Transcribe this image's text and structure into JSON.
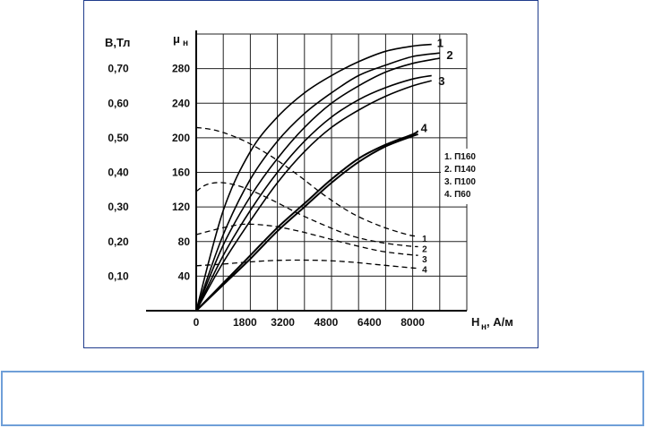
{
  "chart_data": {
    "type": "line",
    "y_left_label": "В,Тл",
    "y_right_label": "μ",
    "y_right_label_sub": "н",
    "x_label": "H",
    "x_label_sub": "н",
    "x_label_unit": ", А/м",
    "x_ticks": [
      "0",
      "1800",
      "3200",
      "4800",
      "6400",
      "8000"
    ],
    "x_tick_values": [
      0,
      1800,
      3200,
      4800,
      6400,
      8000
    ],
    "b_ticks": [
      "0,10",
      "0,20",
      "0,30",
      "0,40",
      "0,50",
      "0,60",
      "0,70"
    ],
    "b_tick_values": [
      0.1,
      0.2,
      0.3,
      0.4,
      0.5,
      0.6,
      0.7
    ],
    "mu_ticks": [
      "40",
      "80",
      "120",
      "160",
      "200",
      "240",
      "280"
    ],
    "mu_tick_values": [
      40,
      80,
      120,
      160,
      200,
      240,
      280
    ],
    "xlim": [
      0,
      10000
    ],
    "b_ylim": [
      0,
      0.8
    ],
    "mu_ylim": [
      0,
      320
    ],
    "grid": true,
    "legend": [
      "1. П160",
      "2. П140",
      "3. П100",
      "4. П60"
    ],
    "legend_position": "right",
    "b_series": [
      {
        "name": "1",
        "x": [
          0,
          1000,
          2000,
          3000,
          4000,
          5000,
          6000,
          7000,
          8000,
          8700
        ],
        "y": [
          0,
          0.29,
          0.46,
          0.56,
          0.63,
          0.68,
          0.72,
          0.75,
          0.765,
          0.77
        ]
      },
      {
        "name": "1",
        "x": [
          0,
          1000,
          2000,
          3000,
          4000,
          5000,
          6000,
          7000,
          8000,
          9000
        ],
        "y": [
          0,
          0.22,
          0.38,
          0.49,
          0.57,
          0.63,
          0.68,
          0.71,
          0.735,
          0.745
        ]
      },
      {
        "name": "2",
        "x": [
          0,
          1000,
          2000,
          3000,
          4000,
          5000,
          6000,
          7000,
          8000,
          9000
        ],
        "y": [
          0,
          0.19,
          0.33,
          0.44,
          0.53,
          0.6,
          0.65,
          0.69,
          0.715,
          0.73
        ]
      },
      {
        "name": "2",
        "x": [
          0,
          1000,
          2000,
          3000,
          4000,
          5000,
          6000,
          7000,
          8000,
          8700
        ],
        "y": [
          0,
          0.16,
          0.29,
          0.4,
          0.49,
          0.56,
          0.61,
          0.645,
          0.67,
          0.68
        ]
      },
      {
        "name": "3",
        "x": [
          0,
          1000,
          2000,
          3000,
          4000,
          5000,
          6000,
          7000,
          8000,
          8700
        ],
        "y": [
          0,
          0.14,
          0.26,
          0.37,
          0.46,
          0.53,
          0.58,
          0.62,
          0.65,
          0.665
        ]
      },
      {
        "name": "4",
        "x": [
          0,
          1000,
          2000,
          3000,
          4000,
          5000,
          6000,
          7000,
          8000,
          8200
        ],
        "y": [
          0,
          0.08,
          0.16,
          0.24,
          0.31,
          0.38,
          0.44,
          0.48,
          0.51,
          0.52
        ]
      },
      {
        "name": "4",
        "x": [
          0,
          1000,
          2000,
          3000,
          4000,
          5000,
          6000,
          7000,
          8000,
          8200
        ],
        "y": [
          0,
          0.075,
          0.15,
          0.23,
          0.3,
          0.37,
          0.43,
          0.475,
          0.505,
          0.51
        ]
      }
    ],
    "mu_series": [
      {
        "name": "1",
        "x": [
          0,
          800,
          1800,
          2800,
          3800,
          4800,
          5800,
          6800,
          7800,
          8200
        ],
        "y": [
          212,
          208,
          196,
          178,
          156,
          132,
          112,
          98,
          88,
          86
        ]
      },
      {
        "name": "2",
        "x": [
          0,
          400,
          1000,
          1800,
          2800,
          3800,
          4800,
          5800,
          6800,
          7800,
          8200
        ],
        "y": [
          138,
          146,
          148,
          142,
          128,
          112,
          98,
          86,
          79,
          75,
          74
        ]
      },
      {
        "name": "3",
        "x": [
          0,
          1000,
          1800,
          2800,
          3800,
          4800,
          5800,
          6800,
          7800,
          8200
        ],
        "y": [
          88,
          96,
          100,
          98,
          92,
          84,
          76,
          69,
          65,
          64
        ]
      },
      {
        "name": "4",
        "x": [
          0,
          1000,
          1800,
          2800,
          3800,
          4800,
          5800,
          6800,
          7800,
          8200
        ],
        "y": [
          52,
          54,
          56,
          58,
          58.5,
          58,
          56,
          53,
          50,
          49
        ]
      }
    ],
    "b_labels": [
      {
        "text": "1",
        "x": 8900,
        "y": 0.775
      },
      {
        "text": "2",
        "x": 9250,
        "y": 0.74
      },
      {
        "text": "3",
        "x": 8950,
        "y": 0.665
      },
      {
        "text": "4",
        "x": 8300,
        "y": 0.53
      }
    ],
    "mu_labels": [
      {
        "text": "1",
        "x": 8350,
        "y": 84
      },
      {
        "text": "2",
        "x": 8350,
        "y": 72
      },
      {
        "text": "3",
        "x": 8350,
        "y": 60
      },
      {
        "text": "4",
        "x": 8350,
        "y": 48
      }
    ]
  },
  "caption": {
    "text": ""
  }
}
